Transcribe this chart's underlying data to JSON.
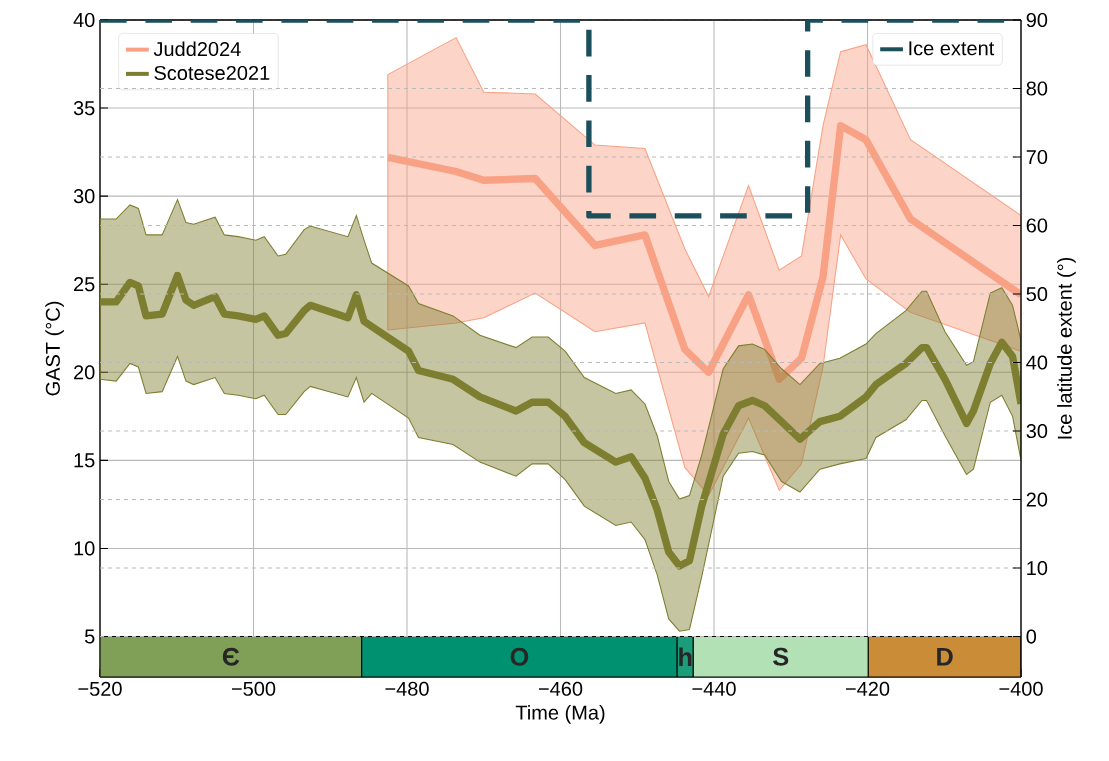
{
  "chart_data": {
    "type": "line",
    "xlabel": "Time (Ma)",
    "ylabel": "GAST (°C)",
    "y2label": "Ice latitude extent (°)",
    "xlim": [
      -520,
      -400
    ],
    "ylim": [
      2.7,
      40
    ],
    "y2lim": [
      -5.9,
      90
    ],
    "xticks": [
      {
        "value": -520,
        "label": "−520"
      },
      {
        "value": -500,
        "label": "−500"
      },
      {
        "value": -480,
        "label": "−480"
      },
      {
        "value": -460,
        "label": "−460"
      },
      {
        "value": -440,
        "label": "−440"
      },
      {
        "value": -420,
        "label": "−420"
      },
      {
        "value": -400,
        "label": "−400"
      }
    ],
    "yticks": [
      5,
      10,
      15,
      20,
      25,
      30,
      35,
      40
    ],
    "y2ticks": [
      0,
      10,
      20,
      30,
      40,
      50,
      60,
      70,
      80,
      90
    ],
    "grid": true,
    "legend": "top left",
    "series": [
      {
        "name": "Judd2024",
        "color": "#f9a184",
        "x": [
          -482.5,
          -473.6,
          -470,
          -463.3,
          -455.5,
          -449,
          -443.8,
          -440.7,
          -435.5,
          -431.5,
          -428.6,
          -425.8,
          -423.5,
          -420.2,
          -414.4,
          -400
        ],
        "values": [
          32.2,
          31.4,
          30.9,
          31.0,
          27.2,
          27.8,
          21.3,
          20.0,
          24.4,
          19.6,
          20.8,
          25.4,
          34.0,
          33.2,
          28.7,
          24.4
        ],
        "upper": [
          36.9,
          39.0,
          35.9,
          35.8,
          32.9,
          32.7,
          27.0,
          24.3,
          30.6,
          25.8,
          26.6,
          34.0,
          38.2,
          38.6,
          33.2,
          28.9
        ],
        "lower": [
          22.4,
          22.8,
          23.1,
          24.5,
          22.3,
          22.8,
          14.6,
          13.0,
          17.4,
          13.3,
          14.8,
          20.3,
          27.8,
          25.3,
          23.4,
          21.2
        ]
      },
      {
        "name": "Scotese2021",
        "color": "#7e7e30",
        "x": [
          -520,
          -517.9,
          -516.1,
          -515,
          -514,
          -511.9,
          -509.9,
          -508.8,
          -507.8,
          -505,
          -503.8,
          -502,
          -499.7,
          -498.6,
          -496.8,
          -495.8,
          -493.4,
          -492.6,
          -487.7,
          -486.6,
          -485.6,
          -484.6,
          -479.8,
          -478.5,
          -474,
          -470.5,
          -465.8,
          -463.7,
          -461.6,
          -459.4,
          -456.9,
          -452.8,
          -450.8,
          -449,
          -447.4,
          -445.9,
          -444.5,
          -443.2,
          -441.6,
          -438.8,
          -436.8,
          -435,
          -433.4,
          -431.2,
          -428.8,
          -426.2,
          -423.6,
          -420.2,
          -418.9,
          -415,
          -412.9,
          -412.3,
          -409.9,
          -407.1,
          -406.2,
          -404,
          -402.5,
          -401.1,
          -400
        ],
        "values": [
          24.0,
          24.0,
          25.1,
          24.9,
          23.2,
          23.3,
          25.5,
          24.1,
          23.8,
          24.3,
          23.3,
          23.2,
          23.0,
          23.2,
          22.1,
          22.2,
          23.5,
          23.8,
          23.1,
          24.4,
          22.9,
          22.6,
          21.2,
          20.1,
          19.6,
          18.6,
          17.8,
          18.3,
          18.3,
          17.5,
          16.0,
          14.9,
          15.2,
          14.0,
          12.2,
          9.8,
          9.0,
          9.3,
          12.4,
          16.5,
          18.1,
          18.4,
          18.1,
          17.2,
          16.2,
          17.2,
          17.5,
          18.6,
          19.3,
          20.5,
          21.4,
          21.4,
          19.6,
          17.1,
          17.8,
          20.5,
          21.7,
          20.9,
          18.2
        ],
        "upper": [
          28.7,
          28.7,
          29.5,
          29.3,
          27.8,
          27.8,
          29.8,
          28.5,
          28.4,
          28.8,
          27.8,
          27.7,
          27.5,
          27.7,
          26.6,
          26.7,
          28.1,
          28.3,
          27.7,
          28.9,
          27.5,
          26.2,
          24.9,
          23.9,
          23.2,
          22.1,
          21.4,
          22.0,
          22.0,
          21.2,
          19.7,
          18.8,
          19.0,
          18.2,
          16.4,
          13.8,
          12.8,
          13.0,
          15.3,
          20.2,
          21.5,
          21.6,
          21.3,
          20.2,
          19.3,
          20.5,
          20.8,
          21.6,
          22.2,
          23.5,
          24.6,
          24.6,
          22.3,
          20.4,
          20.6,
          24.5,
          24.8,
          23.8,
          21.8
        ],
        "lower": [
          19.6,
          19.5,
          20.5,
          20.3,
          18.8,
          18.9,
          20.9,
          19.5,
          19.3,
          19.7,
          18.8,
          18.7,
          18.5,
          18.7,
          17.6,
          17.6,
          18.9,
          19.2,
          18.6,
          19.7,
          18.3,
          18.8,
          17.4,
          16.3,
          15.9,
          14.9,
          14.1,
          14.8,
          14.8,
          13.9,
          12.4,
          11.3,
          11.5,
          10.5,
          8.5,
          6.0,
          5.3,
          5.4,
          8.4,
          14.1,
          15.4,
          15.5,
          15.3,
          13.8,
          13.2,
          14.5,
          14.8,
          15.1,
          16.3,
          17.3,
          18.4,
          18.4,
          16.4,
          14.2,
          14.5,
          18.3,
          18.7,
          17.5,
          15.0
        ]
      },
      {
        "name": "Ice extent",
        "axis": "y2",
        "line_style": "dashed",
        "color": "#1b4f5c",
        "x": [
          -520,
          -456.3,
          -456.3,
          -427.8,
          -427.8,
          -400
        ],
        "values": [
          90,
          90,
          61.4,
          61.4,
          90,
          90
        ]
      }
    ],
    "bands": [
      {
        "axis": "x",
        "from": -520,
        "to": -485.9,
        "label": "Є",
        "color": "#7fa056"
      },
      {
        "axis": "x",
        "from": -485.9,
        "to": -444.8,
        "label": "O",
        "color": "#009270"
      },
      {
        "axis": "x",
        "from": -444.8,
        "to": -442.7,
        "label": "h",
        "color": "#1a9d78"
      },
      {
        "axis": "x",
        "from": -442.7,
        "to": -419.9,
        "label": "S",
        "color": "#b3e1b6"
      },
      {
        "axis": "x",
        "from": -419.9,
        "to": -400,
        "label": "D",
        "color": "#cb8c37"
      }
    ]
  }
}
